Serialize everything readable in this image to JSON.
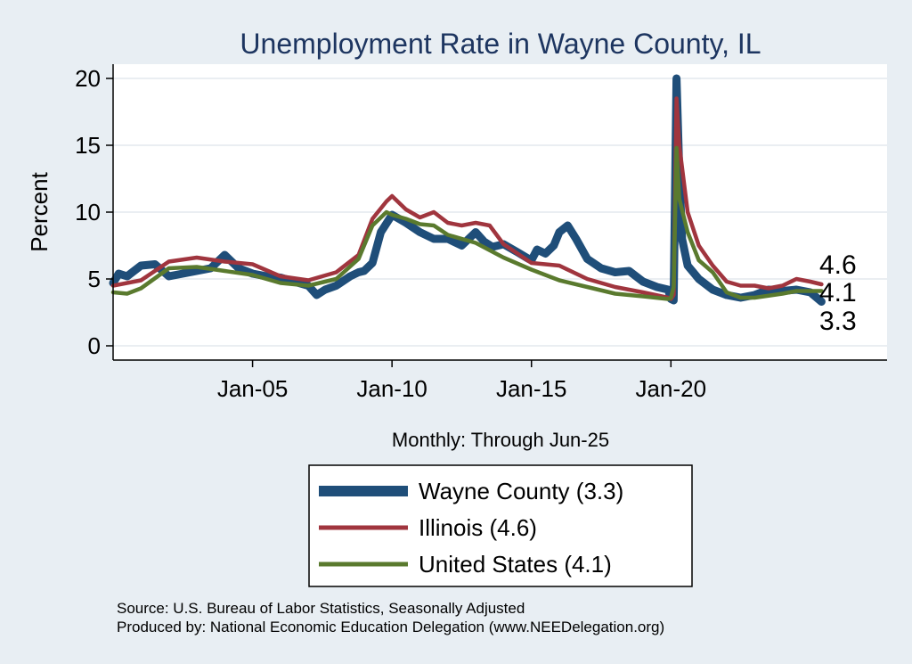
{
  "chart_data": {
    "type": "line",
    "title": "Unemployment Rate in Wayne  County, IL",
    "xlabel": "Monthly: Through Jun-25",
    "ylabel": "Percent",
    "ylim": [
      0,
      20
    ],
    "yticks": [
      0,
      5,
      10,
      15,
      20
    ],
    "xlim": [
      2000.0,
      2027.75
    ],
    "xticks": [
      {
        "value": 2005.0,
        "label": "Jan-05"
      },
      {
        "value": 2010.0,
        "label": "Jan-10"
      },
      {
        "value": 2015.0,
        "label": "Jan-15"
      },
      {
        "value": 2020.0,
        "label": "Jan-20"
      }
    ],
    "grid": true,
    "series": [
      {
        "name": "Wayne  County",
        "legend_label": "Wayne  County (3.3)",
        "color": "#1f4e79",
        "last_label": "3.3",
        "x": [
          2000.0,
          2000.2,
          2000.5,
          2001.0,
          2001.5,
          2002.0,
          2002.5,
          2003.0,
          2003.5,
          2004.0,
          2004.5,
          2005.0,
          2005.5,
          2006.0,
          2006.5,
          2007.0,
          2007.3,
          2007.6,
          2008.0,
          2008.5,
          2008.8,
          2009.0,
          2009.3,
          2009.6,
          2010.0,
          2010.5,
          2011.0,
          2011.5,
          2012.0,
          2012.5,
          2013.0,
          2013.3,
          2013.6,
          2014.0,
          2014.5,
          2014.9,
          2015.0,
          2015.2,
          2015.5,
          2015.8,
          2016.0,
          2016.3,
          2016.6,
          2017.0,
          2017.5,
          2018.0,
          2018.5,
          2019.0,
          2019.5,
          2019.9,
          2020.0,
          2020.1,
          2020.2,
          2020.3,
          2020.4,
          2020.6,
          2020.8,
          2021.0,
          2021.5,
          2022.0,
          2022.5,
          2023.0,
          2023.5,
          2024.0,
          2024.5,
          2025.0,
          2025.4
        ],
        "values": [
          4.7,
          5.4,
          5.2,
          6.0,
          6.1,
          5.2,
          5.4,
          5.6,
          5.8,
          6.8,
          5.8,
          5.4,
          5.2,
          5.1,
          4.8,
          4.5,
          3.8,
          4.2,
          4.5,
          5.2,
          5.5,
          5.6,
          6.2,
          8.5,
          9.8,
          9.2,
          8.5,
          8.0,
          8.0,
          7.5,
          8.5,
          7.8,
          7.4,
          7.6,
          7.0,
          6.5,
          6.4,
          7.2,
          6.9,
          7.5,
          8.5,
          9.0,
          8.0,
          6.5,
          5.8,
          5.5,
          5.6,
          4.8,
          4.4,
          4.2,
          3.5,
          3.4,
          20.0,
          13.0,
          8.0,
          6.0,
          5.5,
          5.0,
          4.2,
          3.8,
          3.6,
          3.8,
          4.2,
          4.1,
          4.2,
          4.0,
          3.3
        ]
      },
      {
        "name": "Illinois",
        "legend_label": "Illinois (4.6)",
        "color": "#a0353e",
        "last_label": "4.6",
        "x": [
          2000.0,
          2001.0,
          2002.0,
          2003.0,
          2004.0,
          2005.0,
          2006.0,
          2007.0,
          2008.0,
          2008.8,
          2009.3,
          2009.8,
          2010.0,
          2010.5,
          2011.0,
          2011.5,
          2012.0,
          2012.5,
          2013.0,
          2013.5,
          2014.0,
          2015.0,
          2016.0,
          2017.0,
          2018.0,
          2019.0,
          2019.9,
          2020.0,
          2020.1,
          2020.2,
          2020.3,
          2020.6,
          2021.0,
          2021.5,
          2022.0,
          2022.5,
          2023.0,
          2023.5,
          2024.0,
          2024.5,
          2025.0,
          2025.4
        ],
        "values": [
          4.5,
          4.9,
          6.3,
          6.6,
          6.3,
          6.1,
          5.2,
          4.9,
          5.5,
          6.8,
          9.5,
          10.8,
          11.2,
          10.2,
          9.6,
          10.0,
          9.2,
          9.0,
          9.2,
          9.0,
          7.6,
          6.2,
          6.0,
          5.0,
          4.4,
          4.0,
          3.6,
          3.5,
          3.8,
          18.5,
          15.0,
          10.0,
          7.5,
          6.0,
          4.8,
          4.5,
          4.5,
          4.3,
          4.5,
          5.0,
          4.8,
          4.6
        ]
      },
      {
        "name": "United States",
        "legend_label": "United States (4.1)",
        "color": "#5a7a2e",
        "last_label": "4.1",
        "x": [
          2000.0,
          2000.5,
          2001.0,
          2002.0,
          2003.0,
          2004.0,
          2005.0,
          2006.0,
          2007.0,
          2008.0,
          2008.8,
          2009.3,
          2009.8,
          2010.0,
          2010.5,
          2011.0,
          2011.5,
          2012.0,
          2013.0,
          2014.0,
          2015.0,
          2016.0,
          2017.0,
          2018.0,
          2019.0,
          2019.9,
          2020.0,
          2020.1,
          2020.2,
          2020.3,
          2020.6,
          2021.0,
          2021.5,
          2022.0,
          2022.5,
          2023.0,
          2024.0,
          2024.5,
          2025.0,
          2025.4
        ],
        "values": [
          4.0,
          3.9,
          4.3,
          5.8,
          5.9,
          5.6,
          5.3,
          4.7,
          4.5,
          5.0,
          6.5,
          9.0,
          10.0,
          9.8,
          9.5,
          9.1,
          9.0,
          8.3,
          7.7,
          6.6,
          5.7,
          4.9,
          4.4,
          3.9,
          3.7,
          3.5,
          3.6,
          4.4,
          14.8,
          11.0,
          8.5,
          6.4,
          5.5,
          4.0,
          3.6,
          3.6,
          3.9,
          4.1,
          4.1,
          4.1
        ]
      }
    ]
  },
  "source": {
    "line1": "Source: U.S. Bureau of Labor Statistics, Seasonally Adjusted",
    "line2": "Produced by: National Economic Education Delegation (www.NEEDelegation.org)"
  }
}
